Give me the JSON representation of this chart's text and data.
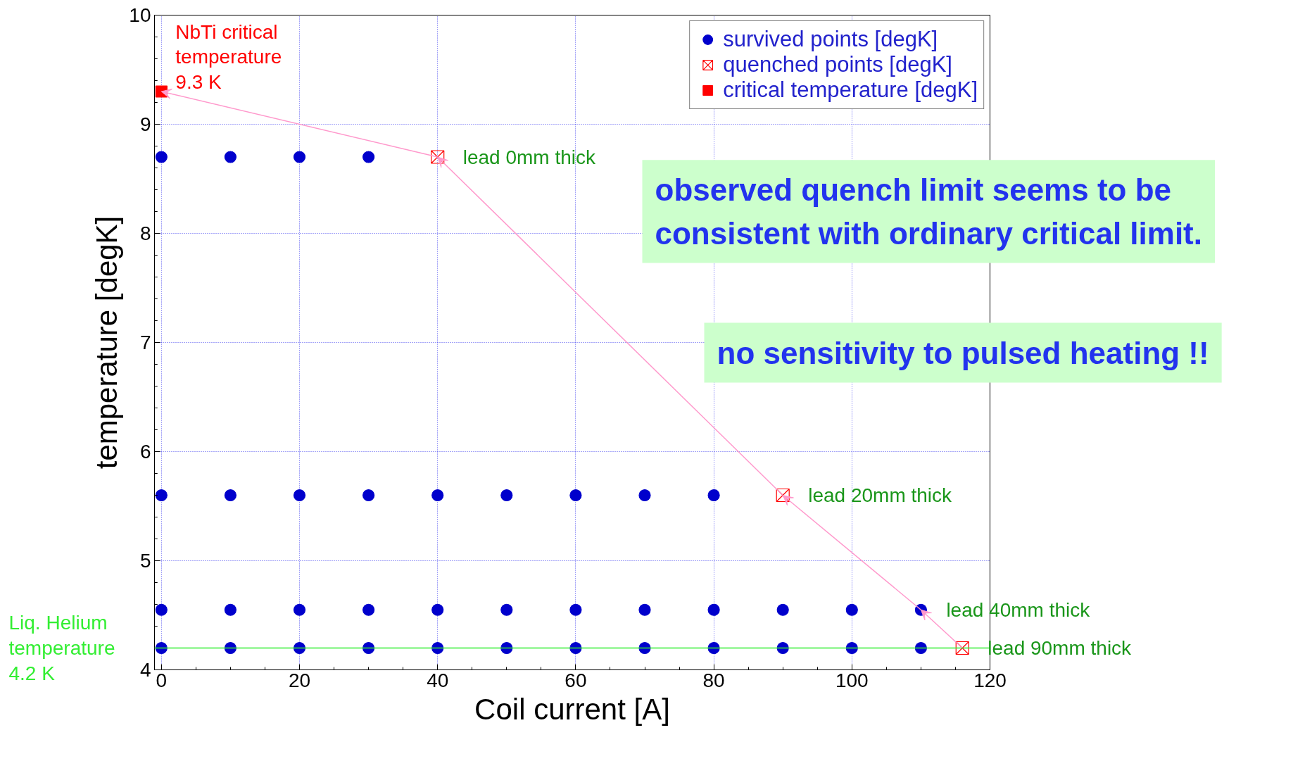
{
  "chart_data": {
    "type": "scatter",
    "xlabel": "Coil current [A]",
    "ylabel": "temperature [degK]",
    "xlim": [
      -1,
      120
    ],
    "ylim": [
      4,
      10
    ],
    "xticks": [
      0,
      20,
      40,
      60,
      80,
      100,
      120
    ],
    "yticks": [
      4,
      5,
      6,
      7,
      8,
      9,
      10
    ],
    "grid": true,
    "legend": "top right",
    "series": [
      {
        "name": "survived points [degK]",
        "color": "#0000cc",
        "marker": "circle",
        "x": [
          0,
          10,
          20,
          30,
          0,
          10,
          20,
          30,
          40,
          50,
          60,
          70,
          80,
          0,
          10,
          20,
          30,
          40,
          50,
          60,
          70,
          80,
          90,
          100,
          110,
          0,
          10,
          20,
          30,
          40,
          50,
          60,
          70,
          80,
          90,
          100,
          110
        ],
        "values": [
          8.7,
          8.7,
          8.7,
          8.7,
          5.6,
          5.6,
          5.6,
          5.6,
          5.6,
          5.6,
          5.6,
          5.6,
          5.6,
          4.55,
          4.55,
          4.55,
          4.55,
          4.55,
          4.55,
          4.55,
          4.55,
          4.55,
          4.55,
          4.55,
          4.55,
          4.2,
          4.2,
          4.2,
          4.2,
          4.2,
          4.2,
          4.2,
          4.2,
          4.2,
          4.2,
          4.2,
          4.2
        ]
      },
      {
        "name": "quenched points [degK]",
        "color": "#ff0000",
        "marker": "cross",
        "x": [
          40,
          90,
          116
        ],
        "values": [
          8.7,
          5.6,
          4.2
        ]
      },
      {
        "name": "critical temperature [degK]",
        "color": "#ff0000",
        "marker": "square",
        "x": [
          0
        ],
        "values": [
          9.3
        ]
      }
    ],
    "ref_lines": [
      {
        "axis": "y",
        "value": 4.2,
        "label": "Liq. Helium\ntemperature\n4.2 K",
        "color": "#33ee33"
      }
    ],
    "annotations": [
      {
        "text": "NbTi critical\ntemperature\n9.3 K",
        "x": 0,
        "y": 9.3
      },
      {
        "text": "lead 0mm thick",
        "x": 40,
        "y": 8.7
      },
      {
        "text": "lead 20mm thick",
        "x": 90,
        "y": 5.6
      },
      {
        "text": "lead 40mm thick",
        "x": 110,
        "y": 4.55
      },
      {
        "text": "lead 90mm thick",
        "x": 116,
        "y": 4.2
      },
      "observed quench limit seems to be\nconsistent with ordinary critical limit.",
      "no sensitivity to pulsed heating !!"
    ]
  }
}
